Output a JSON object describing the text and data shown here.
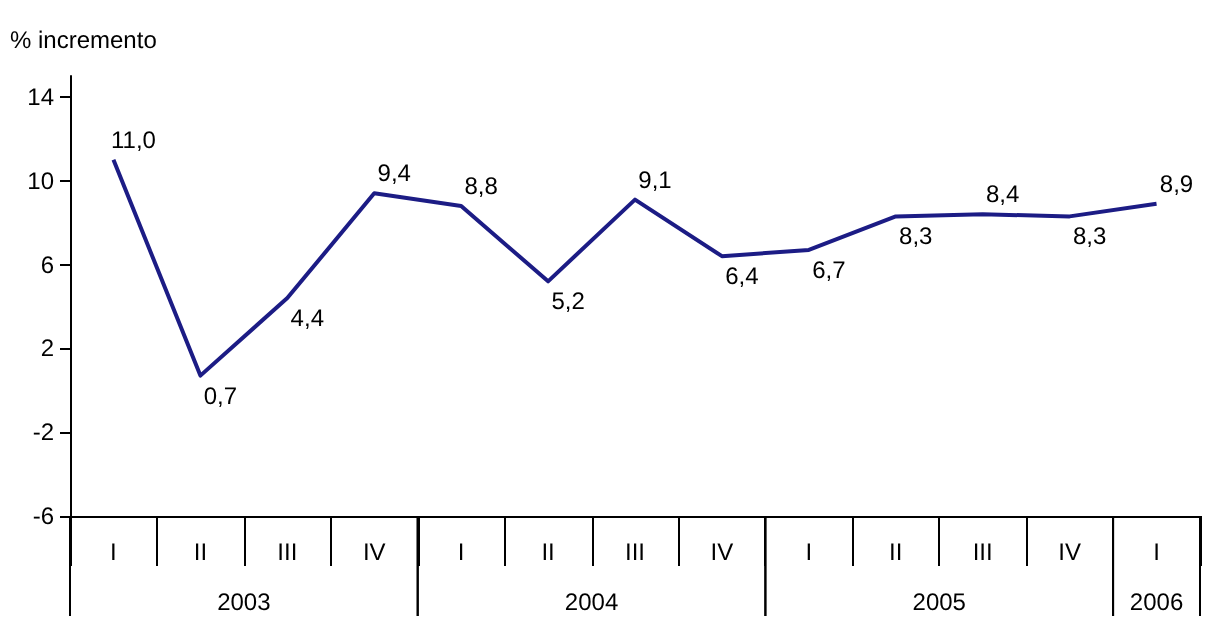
{
  "chart_data": {
    "type": "line",
    "ylabel": "% incremento",
    "categories": [
      "I",
      "II",
      "III",
      "IV",
      "I",
      "II",
      "III",
      "IV",
      "I",
      "II",
      "III",
      "IV",
      "I"
    ],
    "series": [
      {
        "color": "#1c1c85",
        "values": [
          11.0,
          0.7,
          4.4,
          9.4,
          8.8,
          5.2,
          9.1,
          6.4,
          6.7,
          8.3,
          8.4,
          8.3,
          8.9
        ],
        "value_labels": [
          "11,0",
          "0,7",
          "4,4",
          "9,4",
          "8,8",
          "5,2",
          "9,1",
          "6,4",
          "6,7",
          "8,3",
          "8,4",
          "8,3",
          "8,9"
        ]
      }
    ],
    "annotations": [
      "2003",
      "2004",
      "2005",
      "2006"
    ],
    "ylim": [
      -6,
      15
    ],
    "yticks": [
      -6,
      -2,
      2,
      6,
      10,
      14
    ],
    "grid": false,
    "marker": "none",
    "line_style": "solid"
  }
}
